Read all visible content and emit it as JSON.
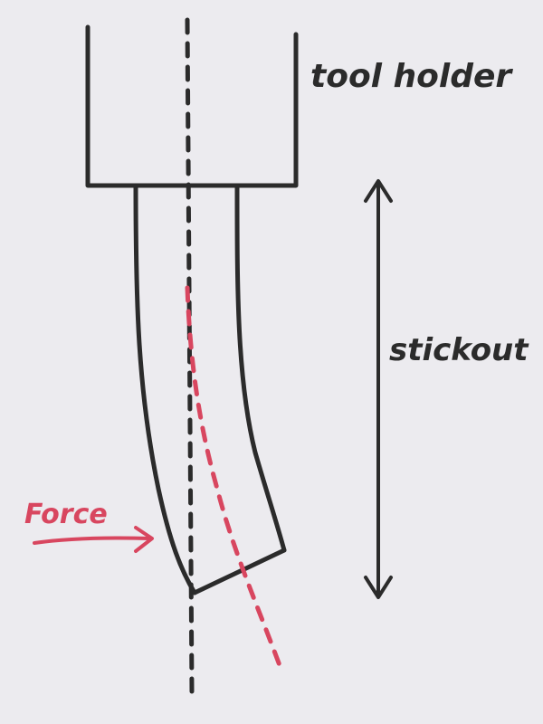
{
  "labels": {
    "tool_holder": "tool holder",
    "stickout": "stickout",
    "force": "Force"
  },
  "colors": {
    "paper": "#ecebef",
    "ink": "#2b2b2b",
    "red_ink": "#d8465f"
  }
}
